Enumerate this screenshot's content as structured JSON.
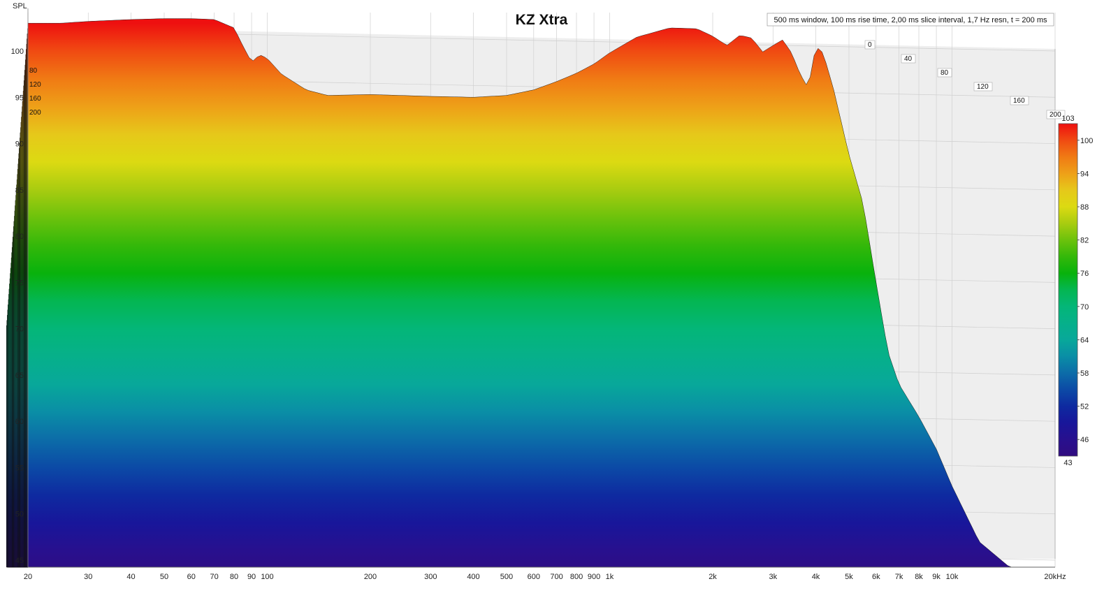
{
  "chart_data": {
    "type": "waterfall",
    "title": "KZ Xtra",
    "info": "500 ms window, 100 ms rise time, 2,00 ms slice interval, 1,7 Hz resn, t = 200 ms",
    "ylabel": "SPL",
    "xlabel": "Hz",
    "xscale": "log",
    "xlim": [
      20,
      20000
    ],
    "ylim": [
      44,
      103
    ],
    "x_ticks": [
      {
        "v": 20,
        "label": "20"
      },
      {
        "v": 30,
        "label": "30"
      },
      {
        "v": 40,
        "label": "40"
      },
      {
        "v": 50,
        "label": "50"
      },
      {
        "v": 60,
        "label": "60"
      },
      {
        "v": 70,
        "label": "70"
      },
      {
        "v": 80,
        "label": "80"
      },
      {
        "v": 90,
        "label": "90"
      },
      {
        "v": 100,
        "label": "100"
      },
      {
        "v": 200,
        "label": "200"
      },
      {
        "v": 300,
        "label": "300"
      },
      {
        "v": 400,
        "label": "400"
      },
      {
        "v": 500,
        "label": "500"
      },
      {
        "v": 600,
        "label": "600"
      },
      {
        "v": 700,
        "label": "700"
      },
      {
        "v": 800,
        "label": "800"
      },
      {
        "v": 900,
        "label": "900"
      },
      {
        "v": 1000,
        "label": "1k"
      },
      {
        "v": 2000,
        "label": "2k"
      },
      {
        "v": 3000,
        "label": "3k"
      },
      {
        "v": 4000,
        "label": "4k"
      },
      {
        "v": 5000,
        "label": "5k"
      },
      {
        "v": 6000,
        "label": "6k"
      },
      {
        "v": 7000,
        "label": "7k"
      },
      {
        "v": 8000,
        "label": "8k"
      },
      {
        "v": 9000,
        "label": "9k"
      },
      {
        "v": 10000,
        "label": "10k"
      },
      {
        "v": 20000,
        "label": "20kHz"
      }
    ],
    "y_ticks": [
      45,
      50,
      55,
      60,
      65,
      70,
      75,
      80,
      85,
      90,
      95,
      100
    ],
    "time_axis_ms": [
      "0",
      "40",
      "80",
      "120",
      "160",
      "200"
    ],
    "time_axis_left_labels": [
      "80",
      "120",
      "160",
      "200"
    ],
    "colorbar": {
      "min": 43,
      "max": 103,
      "ticks": [
        100,
        94,
        88,
        82,
        76,
        70,
        64,
        58,
        52,
        46
      ],
      "top_label": "103",
      "bottom_label": "43"
    },
    "series": [
      {
        "name": "t = 0 ms",
        "x": [
          20,
          25,
          30,
          40,
          50,
          60,
          70,
          80,
          85,
          90,
          95,
          100,
          110,
          130,
          150,
          200,
          300,
          400,
          500,
          600,
          700,
          800,
          900,
          1000,
          1200,
          1500,
          1800,
          2000,
          2200,
          2400,
          2600,
          2800,
          3000,
          3200,
          3400,
          3600,
          3800,
          4000,
          4200,
          4500,
          5000,
          5500,
          6000,
          6500,
          7000,
          8000,
          9000,
          10000,
          12000,
          15000,
          20000
        ],
        "spl": [
          103,
          103,
          103.2,
          103.4,
          103.5,
          103.5,
          103.4,
          102.5,
          100.5,
          98.8,
          99.6,
          99.2,
          97.5,
          95.8,
          95.2,
          95.3,
          95.1,
          95.0,
          95.2,
          95.8,
          96.7,
          97.6,
          98.6,
          99.8,
          101.5,
          102.5,
          102.4,
          101.6,
          100.6,
          101.7,
          101.4,
          99.9,
          100.6,
          101.2,
          99.8,
          97.5,
          96.0,
          100.5,
          99.8,
          96.0,
          88.8,
          83.5,
          75.0,
          67.5,
          64.0,
          60.5,
          57.0,
          53.0,
          47.0,
          44,
          44
        ]
      }
    ]
  }
}
